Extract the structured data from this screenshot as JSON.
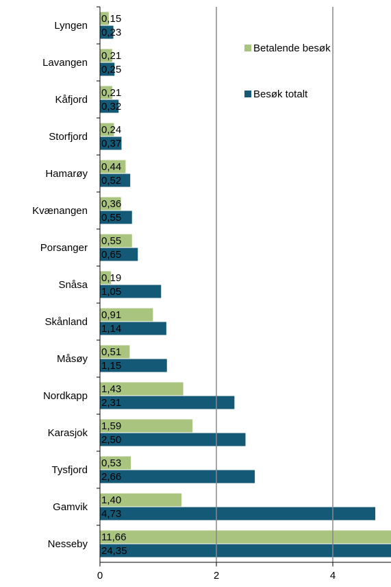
{
  "chart_data": {
    "type": "bar",
    "orientation": "horizontal",
    "categories": [
      "Lyngen",
      "Lavangen",
      "Kåfjord",
      "Storfjord",
      "Hamarøy",
      "Kvænangen",
      "Porsanger",
      "Snåsa",
      "Skånland",
      "Måsøy",
      "Nordkapp",
      "Karasjok",
      "Tysfjord",
      "Gamvik",
      "Nesseby"
    ],
    "series": [
      {
        "name": "Betalende besøk",
        "color": "#a9c47f",
        "values": [
          0.15,
          0.21,
          0.21,
          0.24,
          0.44,
          0.36,
          0.55,
          0.19,
          0.91,
          0.51,
          1.43,
          1.59,
          0.53,
          1.4,
          11.66
        ],
        "value_labels": [
          "0,15",
          "0,21",
          "0,21",
          "0,24",
          "0,44",
          "0,36",
          "0,55",
          "0,19",
          "0,91",
          "0,51",
          "1,43",
          "1,59",
          "0,53",
          "1,40",
          "11,66"
        ]
      },
      {
        "name": "Besøk totalt",
        "color": "#145a76",
        "values": [
          0.23,
          0.25,
          0.32,
          0.37,
          0.52,
          0.55,
          0.65,
          1.05,
          1.14,
          1.15,
          2.31,
          2.5,
          2.66,
          4.73,
          24.35
        ],
        "value_labels": [
          "0,23",
          "0,25",
          "0,32",
          "0,37",
          "0,52",
          "0,55",
          "0,65",
          "1,05",
          "1,14",
          "1,15",
          "2,31",
          "2,50",
          "2,66",
          "4,73",
          "24,35"
        ]
      }
    ],
    "xlim": [
      0,
      5
    ],
    "xticks": [
      0,
      2,
      4
    ],
    "grid": true,
    "legend": "top-right"
  }
}
